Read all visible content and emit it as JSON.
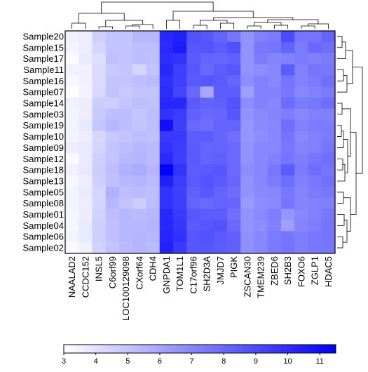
{
  "chart_data": {
    "type": "heatmap",
    "title": "",
    "xlabel": "",
    "ylabel": "",
    "rows": [
      "Sample20",
      "Sample15",
      "Sample17",
      "Sample11",
      "Sample16",
      "Sample07",
      "Sample14",
      "Sample03",
      "Sample19",
      "Sample10",
      "Sample09",
      "Sample12",
      "Sample18",
      "Sample13",
      "Sample05",
      "Sample08",
      "Sample01",
      "Sample04",
      "Sample06",
      "Sample02"
    ],
    "columns": [
      "NAALAD2",
      "CCDC152",
      "INSL5",
      "C6orf99",
      "LOC100129098",
      "CXorf64",
      "CDH4",
      "GNPDA1",
      "TOM1L1",
      "C17orf96",
      "SH2D3A",
      "JMJD7",
      "PIGK",
      "ZSCAN30",
      "TMEM239",
      "ZBED6",
      "SH2B3",
      "FOXO6",
      "ZGLP1",
      "HDAC5"
    ],
    "values": [
      [
        3.5,
        3.6,
        4.6,
        5.0,
        5.0,
        5.4,
        5.4,
        10.2,
        10.4,
        8.8,
        8.6,
        8.2,
        7.6,
        6.6,
        7.2,
        7.4,
        9.0,
        7.6,
        7.6,
        8.2
      ],
      [
        3.4,
        3.6,
        4.4,
        5.0,
        5.0,
        5.2,
        5.2,
        10.1,
        10.6,
        8.6,
        8.7,
        8.4,
        8.8,
        6.6,
        7.5,
        7.6,
        8.2,
        7.4,
        8.0,
        7.8
      ],
      [
        3.2,
        3.7,
        4.1,
        5.1,
        5.0,
        5.2,
        5.1,
        10.0,
        9.8,
        8.5,
        8.2,
        8.1,
        8.3,
        6.6,
        7.4,
        7.1,
        7.2,
        7.4,
        7.2,
        7.4
      ],
      [
        3.5,
        3.5,
        4.2,
        4.8,
        4.9,
        4.4,
        5.0,
        10.2,
        9.4,
        8.6,
        8.0,
        8.4,
        8.6,
        6.6,
        6.8,
        7.0,
        8.4,
        7.2,
        7.6,
        7.5
      ],
      [
        3.3,
        3.5,
        4.2,
        5.0,
        5.0,
        5.2,
        5.3,
        9.9,
        9.4,
        8.5,
        8.6,
        8.5,
        8.1,
        6.8,
        7.2,
        7.0,
        7.6,
        7.2,
        7.4,
        7.8
      ],
      [
        3.0,
        3.4,
        4.3,
        5.0,
        4.8,
        5.0,
        5.0,
        10.0,
        9.2,
        8.0,
        5.9,
        8.4,
        8.4,
        6.2,
        7.2,
        7.2,
        7.5,
        7.0,
        7.2,
        7.4
      ],
      [
        3.5,
        3.6,
        4.7,
        4.6,
        5.0,
        5.2,
        5.1,
        10.2,
        10.2,
        8.5,
        8.2,
        8.3,
        8.7,
        6.8,
        7.2,
        7.0,
        7.9,
        7.4,
        7.5,
        7.8
      ],
      [
        3.4,
        3.6,
        4.8,
        5.2,
        5.2,
        4.9,
        5.2,
        9.8,
        9.5,
        8.3,
        8.0,
        8.1,
        8.6,
        6.6,
        6.9,
        7.1,
        7.3,
        7.0,
        7.2,
        7.2
      ],
      [
        3.4,
        3.8,
        4.9,
        5.4,
        5.2,
        5.0,
        5.2,
        11.0,
        9.4,
        8.0,
        7.8,
        8.2,
        8.2,
        6.5,
        6.9,
        7.0,
        7.8,
        7.2,
        7.4,
        7.4
      ],
      [
        3.4,
        3.6,
        4.3,
        4.8,
        5.0,
        5.2,
        5.1,
        9.6,
        9.6,
        8.4,
        8.4,
        8.1,
        7.8,
        6.5,
        6.8,
        7.0,
        7.6,
        7.0,
        7.2,
        7.4
      ],
      [
        3.6,
        3.7,
        4.4,
        5.0,
        5.2,
        5.4,
        5.3,
        9.8,
        9.5,
        8.5,
        8.1,
        8.2,
        8.0,
        6.6,
        7.0,
        7.0,
        7.5,
        7.1,
        7.2,
        7.6
      ],
      [
        3.2,
        3.7,
        4.6,
        5.0,
        5.4,
        5.5,
        5.3,
        10.1,
        9.4,
        8.5,
        8.2,
        8.3,
        8.0,
        6.6,
        7.0,
        7.2,
        7.6,
        7.3,
        7.6,
        7.8
      ],
      [
        3.5,
        3.8,
        4.7,
        5.2,
        5.6,
        5.8,
        5.4,
        11.4,
        9.8,
        8.4,
        8.5,
        8.6,
        8.0,
        6.8,
        7.0,
        7.5,
        8.4,
        7.4,
        7.8,
        7.6
      ],
      [
        3.3,
        3.6,
        4.6,
        5.1,
        5.4,
        5.5,
        5.3,
        10.4,
        9.5,
        8.5,
        8.7,
        8.5,
        8.1,
        6.6,
        7.0,
        7.4,
        7.8,
        7.2,
        7.5,
        7.7
      ],
      [
        3.4,
        3.7,
        4.4,
        5.6,
        5.2,
        5.3,
        5.2,
        9.8,
        9.4,
        8.3,
        8.6,
        8.2,
        7.9,
        6.6,
        6.9,
        7.0,
        7.5,
        7.1,
        7.4,
        7.5
      ],
      [
        3.4,
        3.6,
        4.4,
        5.4,
        5.0,
        4.7,
        5.2,
        9.8,
        9.4,
        8.2,
        8.0,
        8.2,
        8.1,
        6.4,
        6.8,
        6.9,
        7.6,
        7.1,
        7.2,
        7.2
      ],
      [
        3.3,
        3.6,
        4.5,
        5.2,
        5.4,
        5.3,
        5.4,
        10.2,
        9.6,
        8.6,
        8.4,
        8.4,
        7.8,
        6.6,
        6.9,
        7.3,
        6.5,
        7.0,
        7.2,
        7.5
      ],
      [
        3.3,
        3.7,
        4.6,
        5.1,
        5.4,
        5.4,
        5.5,
        10.2,
        9.7,
        8.5,
        8.6,
        8.8,
        8.0,
        6.6,
        6.8,
        7.2,
        6.2,
        7.1,
        7.3,
        7.6
      ],
      [
        3.4,
        3.7,
        4.6,
        5.1,
        5.4,
        5.5,
        5.4,
        10.3,
        9.9,
        8.6,
        8.8,
        8.5,
        8.3,
        6.7,
        7.0,
        7.4,
        7.6,
        7.3,
        7.5,
        7.6
      ],
      [
        3.2,
        3.5,
        4.5,
        5.0,
        5.3,
        5.5,
        5.3,
        10.4,
        9.6,
        8.6,
        8.6,
        8.4,
        8.3,
        6.7,
        7.0,
        7.4,
        7.6,
        7.3,
        7.5,
        7.6
      ]
    ],
    "colorscale": {
      "low": "#ffffff",
      "high": "#0000ff",
      "min": 3.0,
      "max": 11.5,
      "ticks": [
        3,
        4,
        5,
        6,
        7,
        8,
        9,
        10,
        11
      ]
    },
    "column_dendrogram": true,
    "row_dendrogram": true
  }
}
